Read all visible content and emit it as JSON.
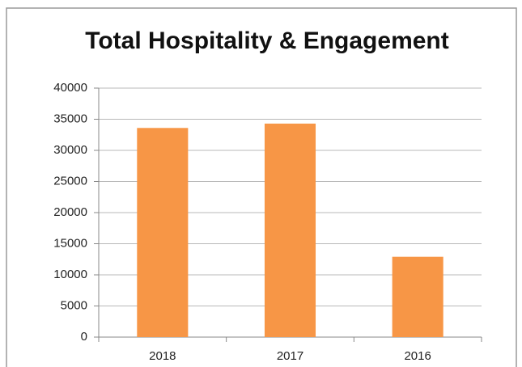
{
  "chart_data": {
    "type": "bar",
    "title": "Total Hospitality & Engagement",
    "categories": [
      "2018",
      "2017",
      "2016"
    ],
    "values": [
      33600,
      34300,
      12900
    ],
    "color": "#f79646",
    "ylim": [
      0,
      40000
    ],
    "yticks": [
      0,
      5000,
      10000,
      15000,
      20000,
      25000,
      30000,
      35000,
      40000
    ],
    "grid": true
  }
}
